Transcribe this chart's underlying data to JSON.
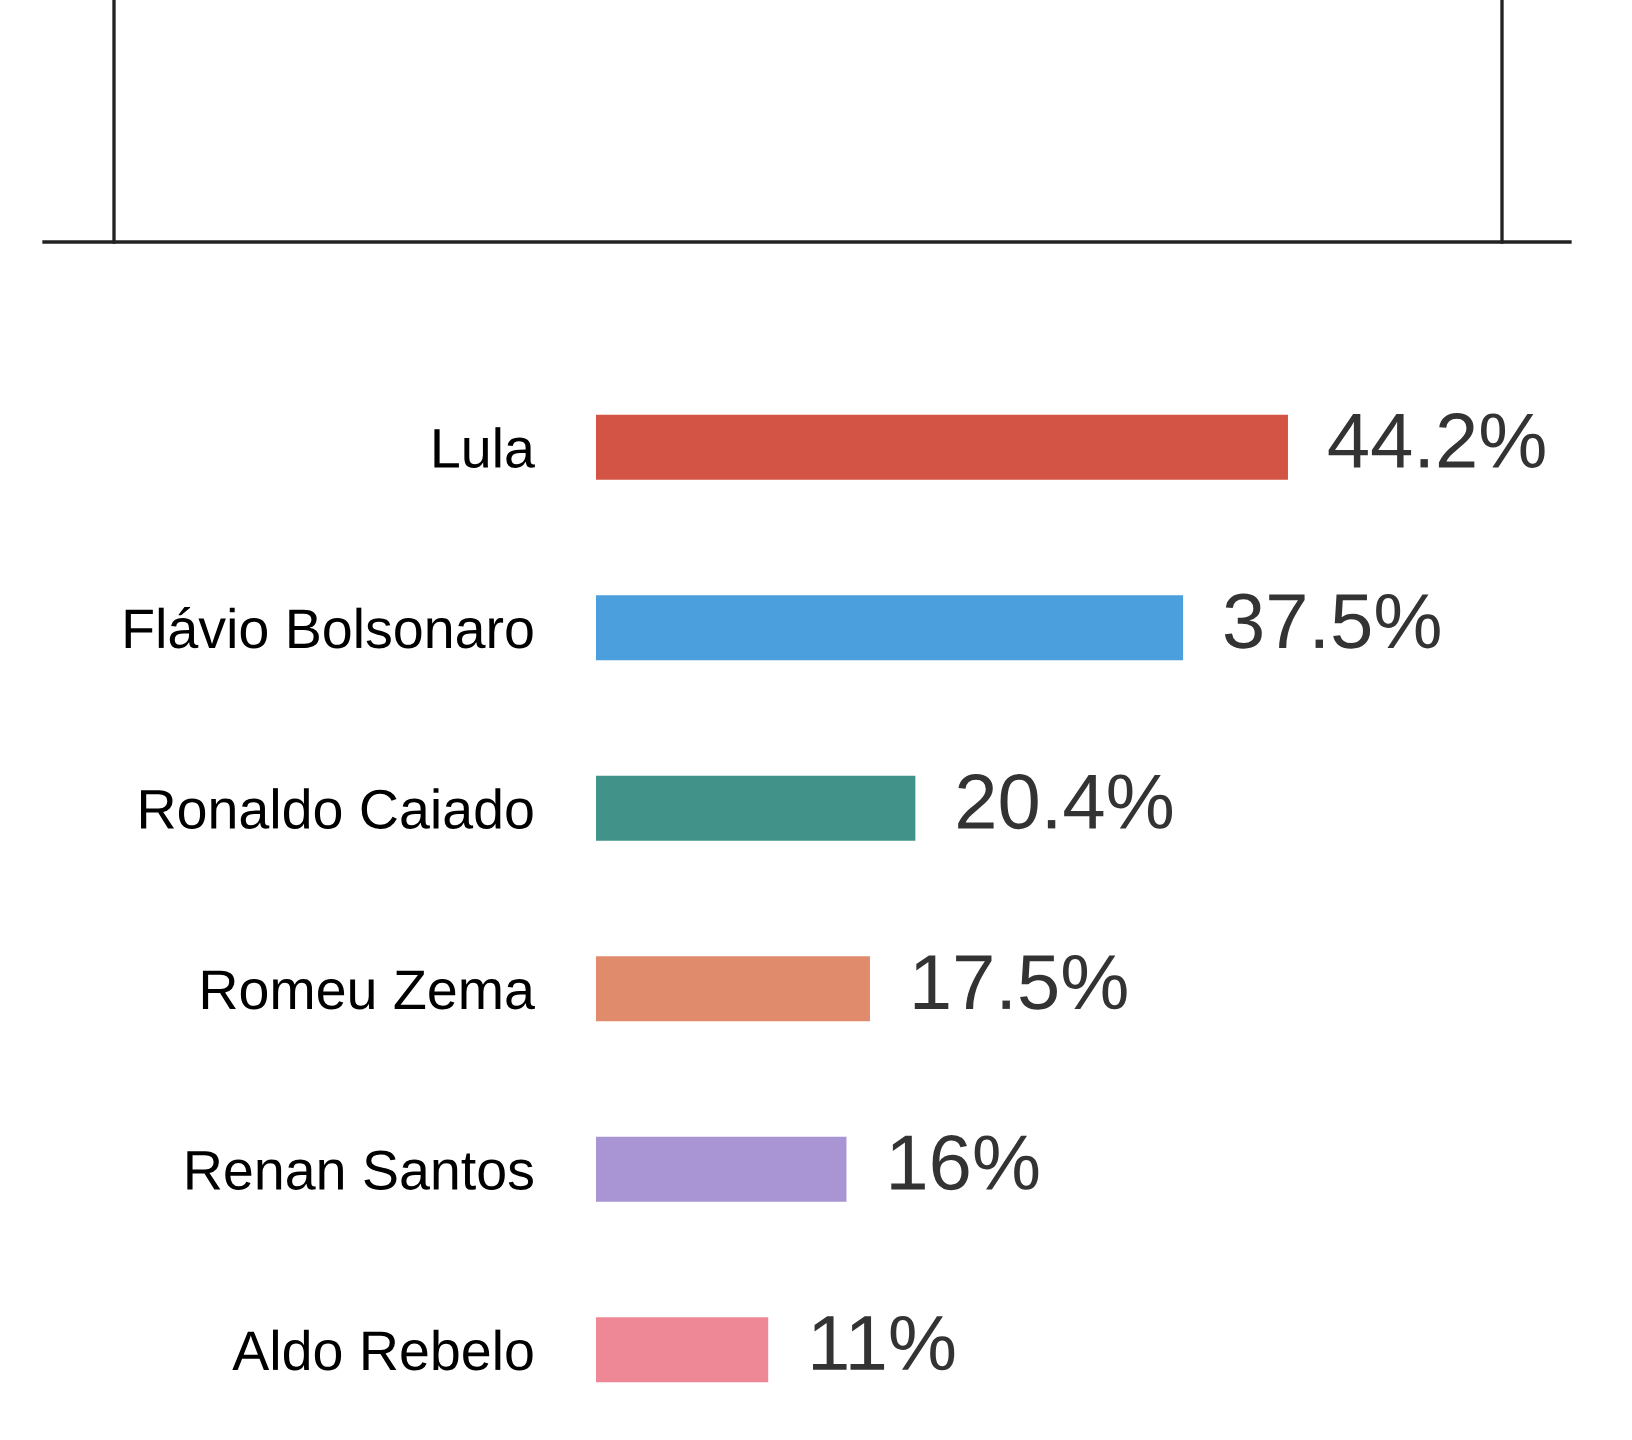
{
  "chart_data": {
    "type": "bar",
    "orientation": "horizontal",
    "categories": [
      "Lula",
      "Flávio Bolsonaro",
      "Ronaldo Caiado",
      "Romeu Zema",
      "Renan Santos",
      "Aldo Rebelo"
    ],
    "values": [
      44.2,
      37.5,
      20.4,
      17.5,
      16,
      11
    ],
    "colors": [
      "#d35444",
      "#4a9fdc",
      "#41938a",
      "#e08c6c",
      "#a994d4",
      "#ef8896"
    ],
    "value_labels": [
      "44.2%",
      "37.5%",
      "20.4%",
      "17.5%",
      "16%",
      "11%"
    ],
    "grid": false,
    "legend": false,
    "tick_labels": "y"
  }
}
